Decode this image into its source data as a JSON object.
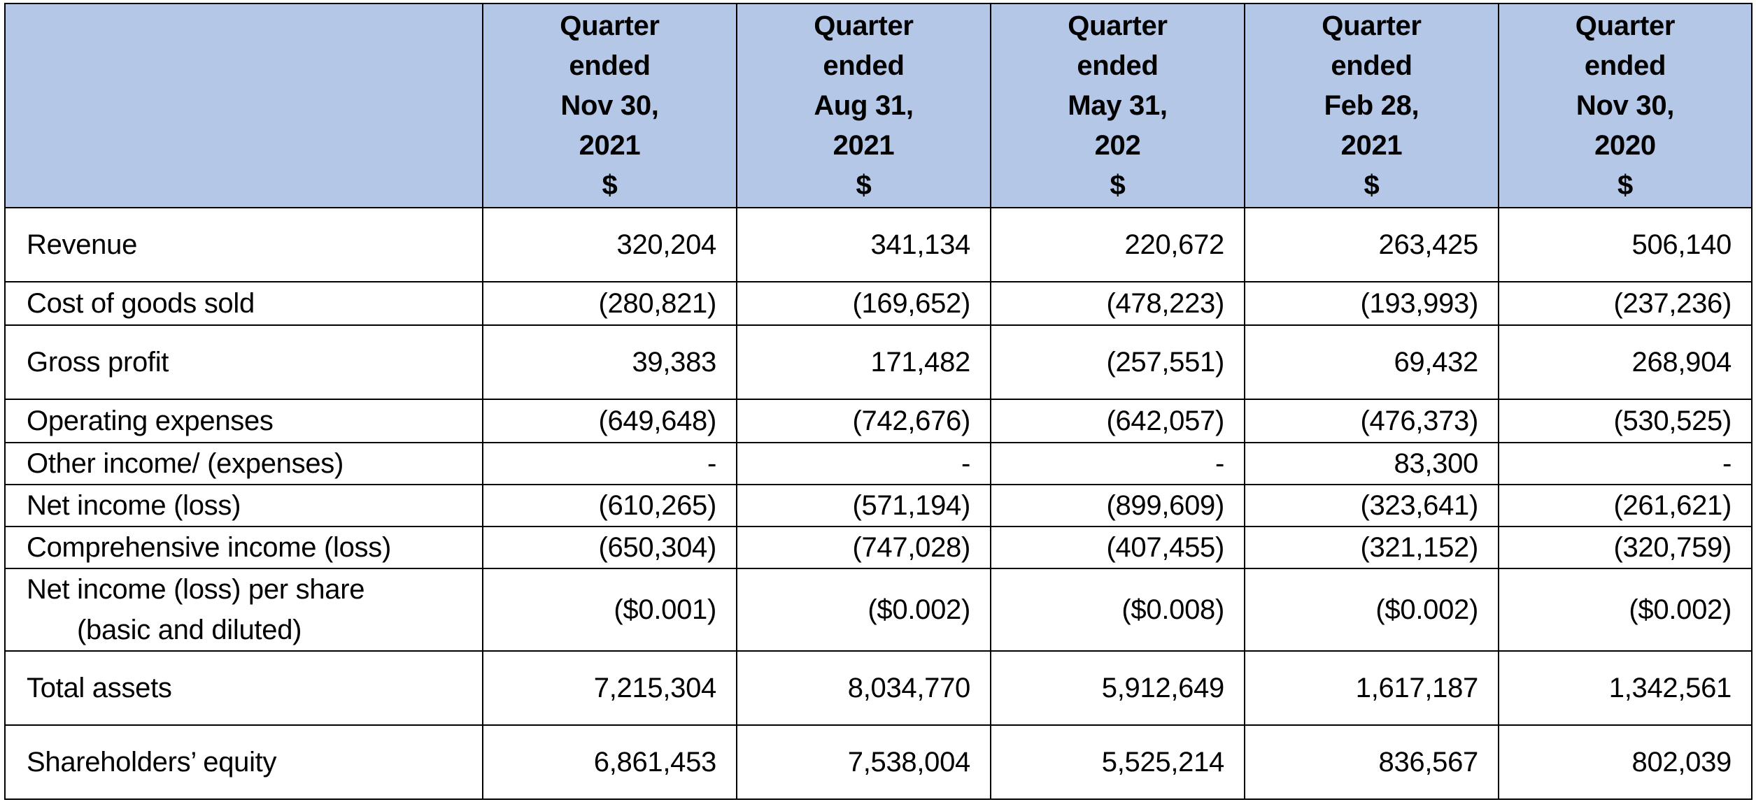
{
  "table": {
    "columns": [
      {
        "line1": "Quarter",
        "line2": "ended",
        "line3": "Nov 30,",
        "line4": "2021",
        "line5": "$"
      },
      {
        "line1": "Quarter",
        "line2": "ended",
        "line3": "Aug 31,",
        "line4": "2021",
        "line5": "$"
      },
      {
        "line1": "Quarter",
        "line2": "ended",
        "line3": "May 31,",
        "line4": "202",
        "line5": "$"
      },
      {
        "line1": "Quarter",
        "line2": "ended",
        "line3": "Feb 28,",
        "line4": "2021",
        "line5": "$"
      },
      {
        "line1": "Quarter",
        "line2": "ended",
        "line3": "Nov 30,",
        "line4": "2020",
        "line5": "$"
      }
    ],
    "rows": [
      {
        "label": "Revenue",
        "values": [
          "320,204",
          "341,134",
          "220,672",
          "263,425",
          "506,140"
        ]
      },
      {
        "label": "Cost of goods sold",
        "values": [
          "(280,821)",
          "(169,652)",
          "(478,223)",
          "(193,993)",
          "(237,236)"
        ]
      },
      {
        "label": "Gross profit",
        "values": [
          "39,383",
          "171,482",
          "(257,551)",
          "69,432",
          "268,904"
        ]
      },
      {
        "label": "Operating expenses",
        "values": [
          "(649,648)",
          "(742,676)",
          "(642,057)",
          "(476,373)",
          "(530,525)"
        ]
      },
      {
        "label": "Other income/ (expenses)",
        "values": [
          "-",
          "-",
          "-",
          "83,300",
          "-"
        ]
      },
      {
        "label": "Net income (loss)",
        "values": [
          "(610,265)",
          "(571,194)",
          "(899,609)",
          "(323,641)",
          "(261,621)"
        ]
      },
      {
        "label": "Comprehensive income (loss)",
        "values": [
          "(650,304)",
          "(747,028)",
          "(407,455)",
          "(321,152)",
          "(320,759)"
        ]
      },
      {
        "label": "Net income (loss) per share",
        "label_line2": "(basic and diluted)",
        "values": [
          "($0.001)",
          "($0.002)",
          "($0.008)",
          "($0.002)",
          "($0.002)"
        ]
      },
      {
        "label": "Total assets",
        "values": [
          "7,215,304",
          "8,034,770",
          "5,912,649",
          "1,617,187",
          "1,342,561"
        ]
      },
      {
        "label": "Shareholders’ equity",
        "values": [
          "6,861,453",
          "7,538,004",
          "5,525,214",
          "836,567",
          "802,039"
        ]
      }
    ]
  },
  "colors": {
    "header_background": "#b4c7e7",
    "border": "#000000",
    "cell_background": "#ffffff"
  }
}
